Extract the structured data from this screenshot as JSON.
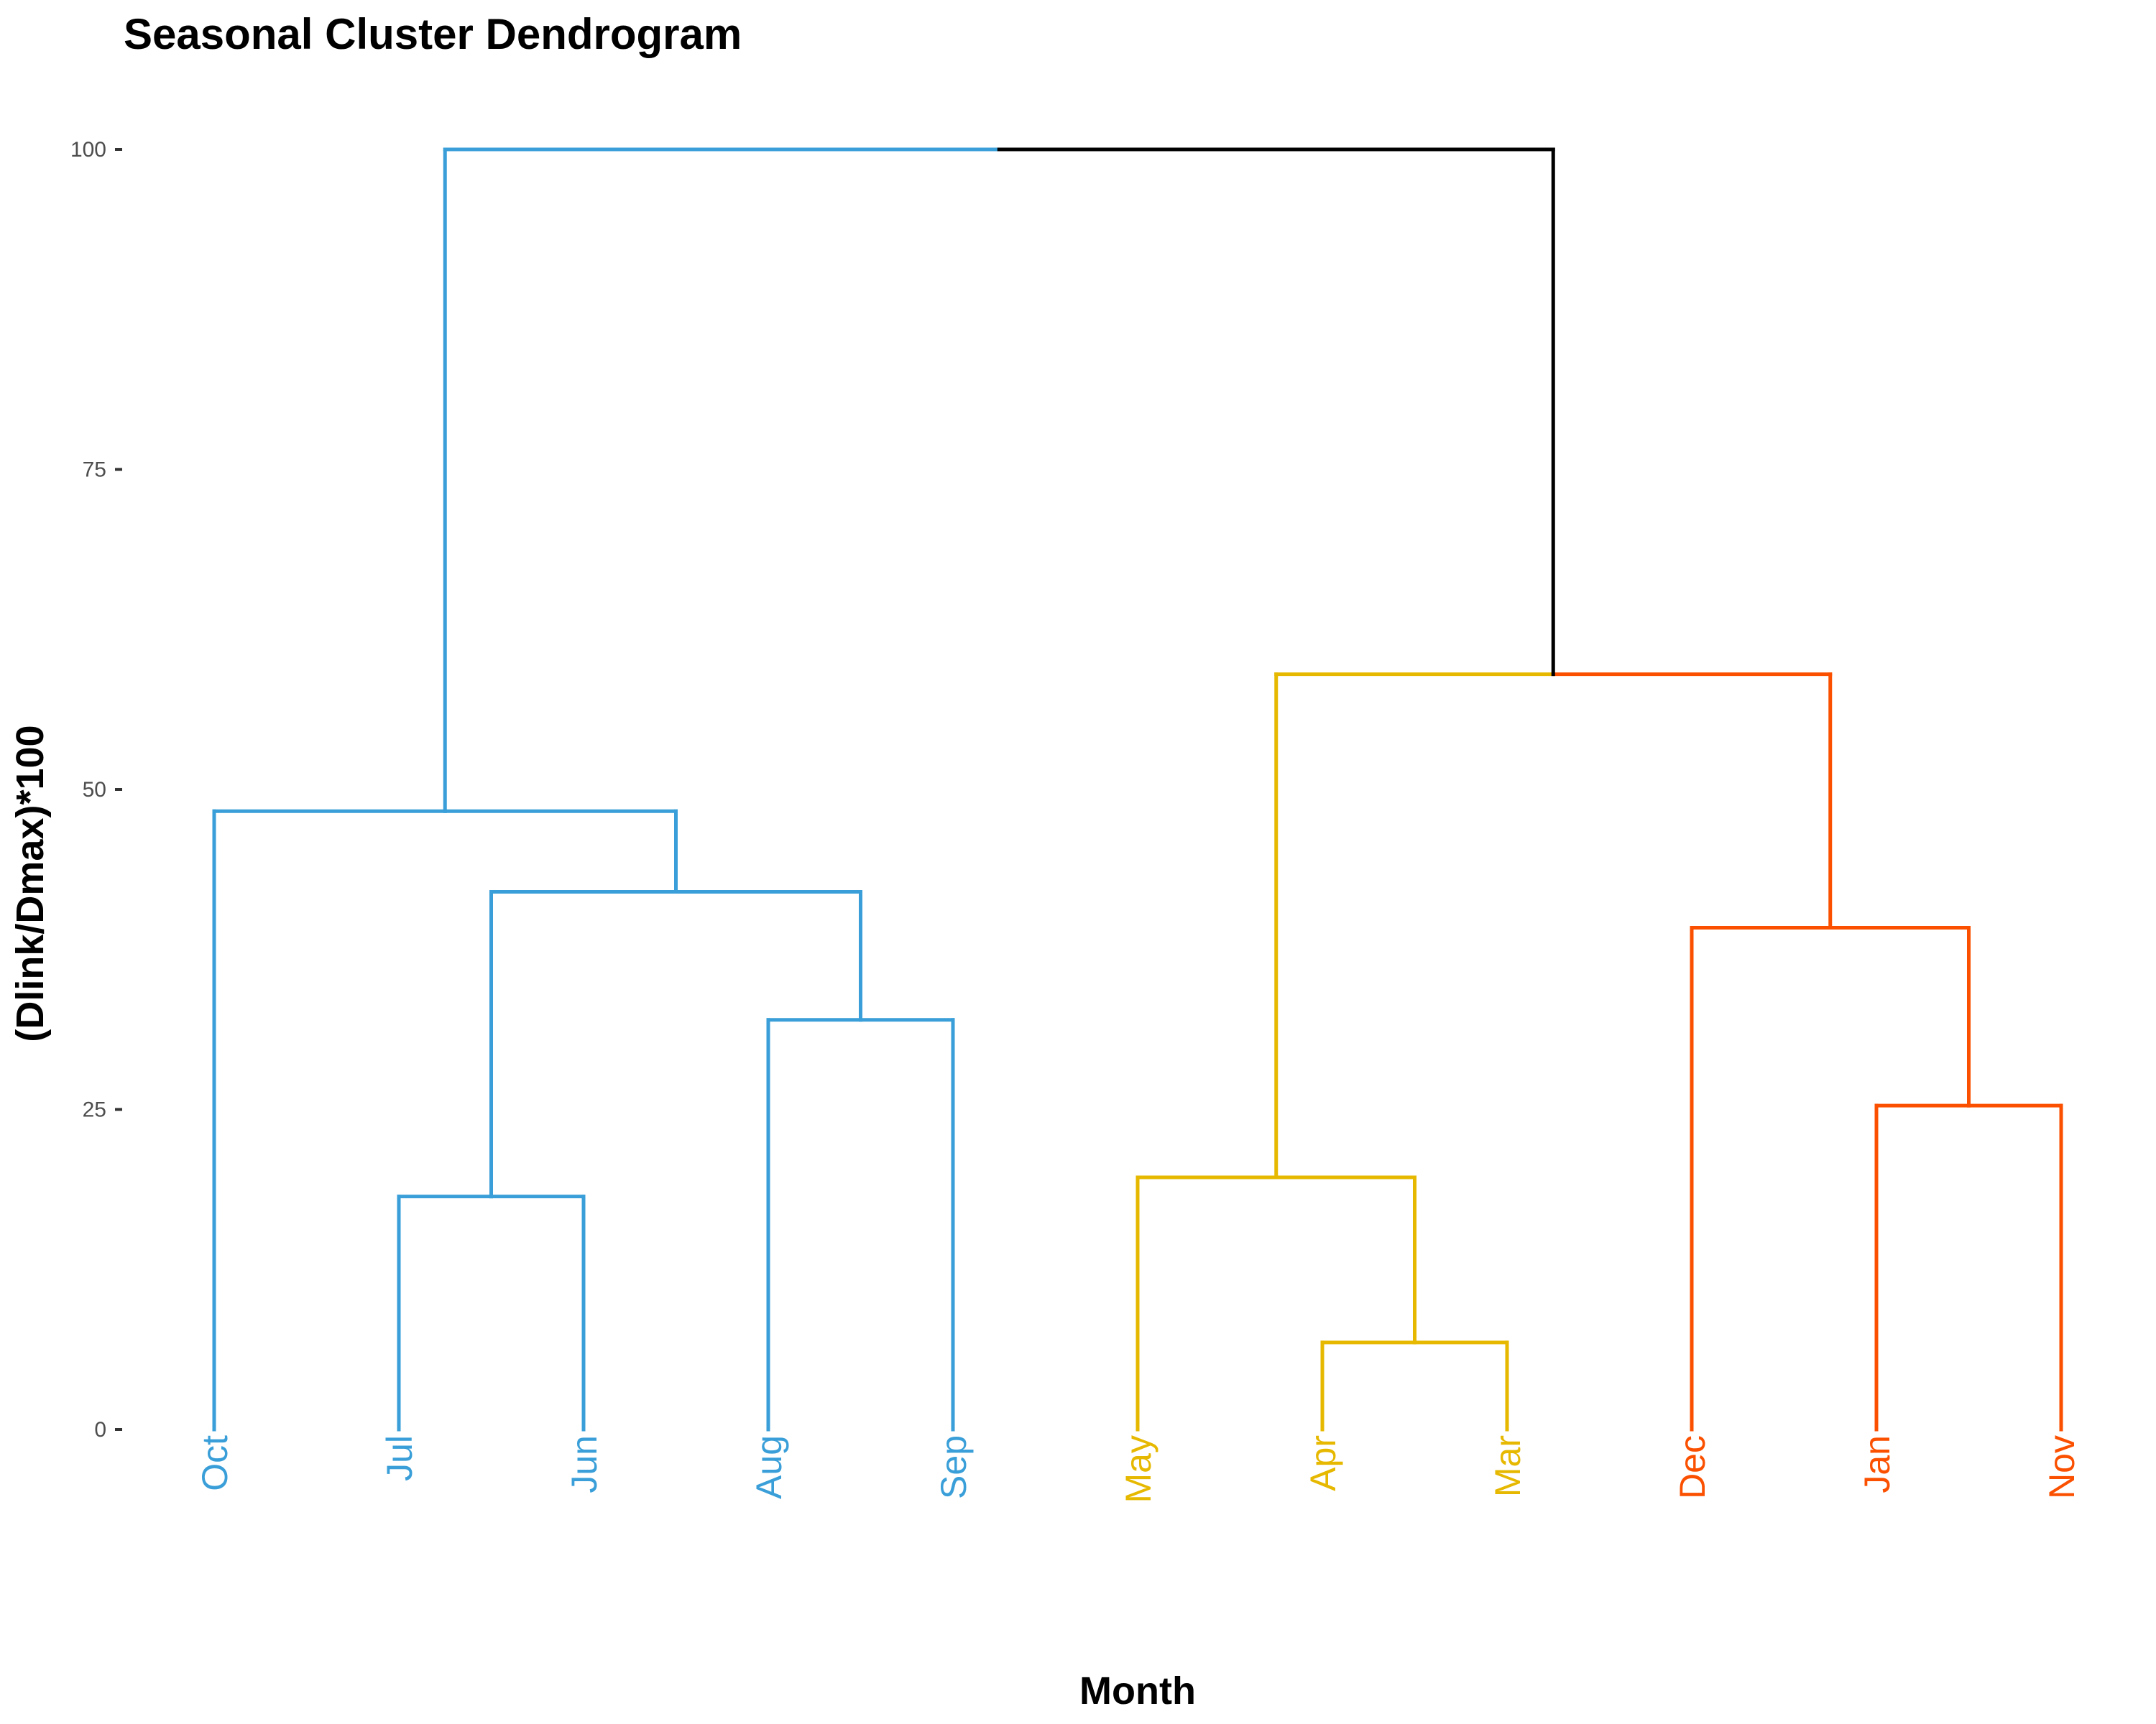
{
  "chart_data": {
    "type": "dendrogram",
    "title": "Seasonal Cluster Dendrogram",
    "xlabel": "Month",
    "ylabel": "(Dlink/Dmax)*100",
    "ylim": [
      0,
      100
    ],
    "yticks": [
      0,
      25,
      50,
      75,
      100
    ],
    "grid": false,
    "leaves": [
      {
        "label": "Oct",
        "cluster": "summer"
      },
      {
        "label": "Jul",
        "cluster": "summer"
      },
      {
        "label": "Jun",
        "cluster": "summer"
      },
      {
        "label": "Aug",
        "cluster": "summer"
      },
      {
        "label": "Sep",
        "cluster": "summer"
      },
      {
        "label": "May",
        "cluster": "spring"
      },
      {
        "label": "Apr",
        "cluster": "spring"
      },
      {
        "label": "Mar",
        "cluster": "spring"
      },
      {
        "label": "Dec",
        "cluster": "winter"
      },
      {
        "label": "Jan",
        "cluster": "winter"
      },
      {
        "label": "Nov",
        "cluster": "winter"
      }
    ],
    "merges": [
      {
        "id": "m1",
        "left": "Jul",
        "right": "Jun",
        "height": 18.2,
        "cluster": "summer"
      },
      {
        "id": "m2",
        "left": "Aug",
        "right": "Sep",
        "height": 32.0,
        "cluster": "summer"
      },
      {
        "id": "m3",
        "left": "m1",
        "right": "m2",
        "height": 42.0,
        "cluster": "summer"
      },
      {
        "id": "m4",
        "left": "Oct",
        "right": "m3",
        "height": 48.3,
        "cluster": "summer"
      },
      {
        "id": "m5",
        "left": "Apr",
        "right": "Mar",
        "height": 6.8,
        "cluster": "spring"
      },
      {
        "id": "m6",
        "left": "May",
        "right": "m5",
        "height": 19.7,
        "cluster": "spring"
      },
      {
        "id": "m7",
        "left": "Jan",
        "right": "Nov",
        "height": 25.3,
        "cluster": "winter"
      },
      {
        "id": "m8",
        "left": "Dec",
        "right": "m7",
        "height": 39.2,
        "cluster": "winter"
      },
      {
        "id": "m9",
        "left": "m6",
        "right": "m8",
        "height": 59.0,
        "cluster": "spring+winter",
        "left_color": "spring",
        "right_color": "winter",
        "stem_color": "root"
      },
      {
        "id": "m10",
        "left": "m4",
        "right": "m9",
        "height": 100.0,
        "cluster": "root",
        "left_color": "summer",
        "right_color": "root"
      }
    ],
    "colors": {
      "summer": "#3a9fd8",
      "spring": "#e6b800",
      "winter": "#fa5000",
      "root": "#000000"
    }
  }
}
